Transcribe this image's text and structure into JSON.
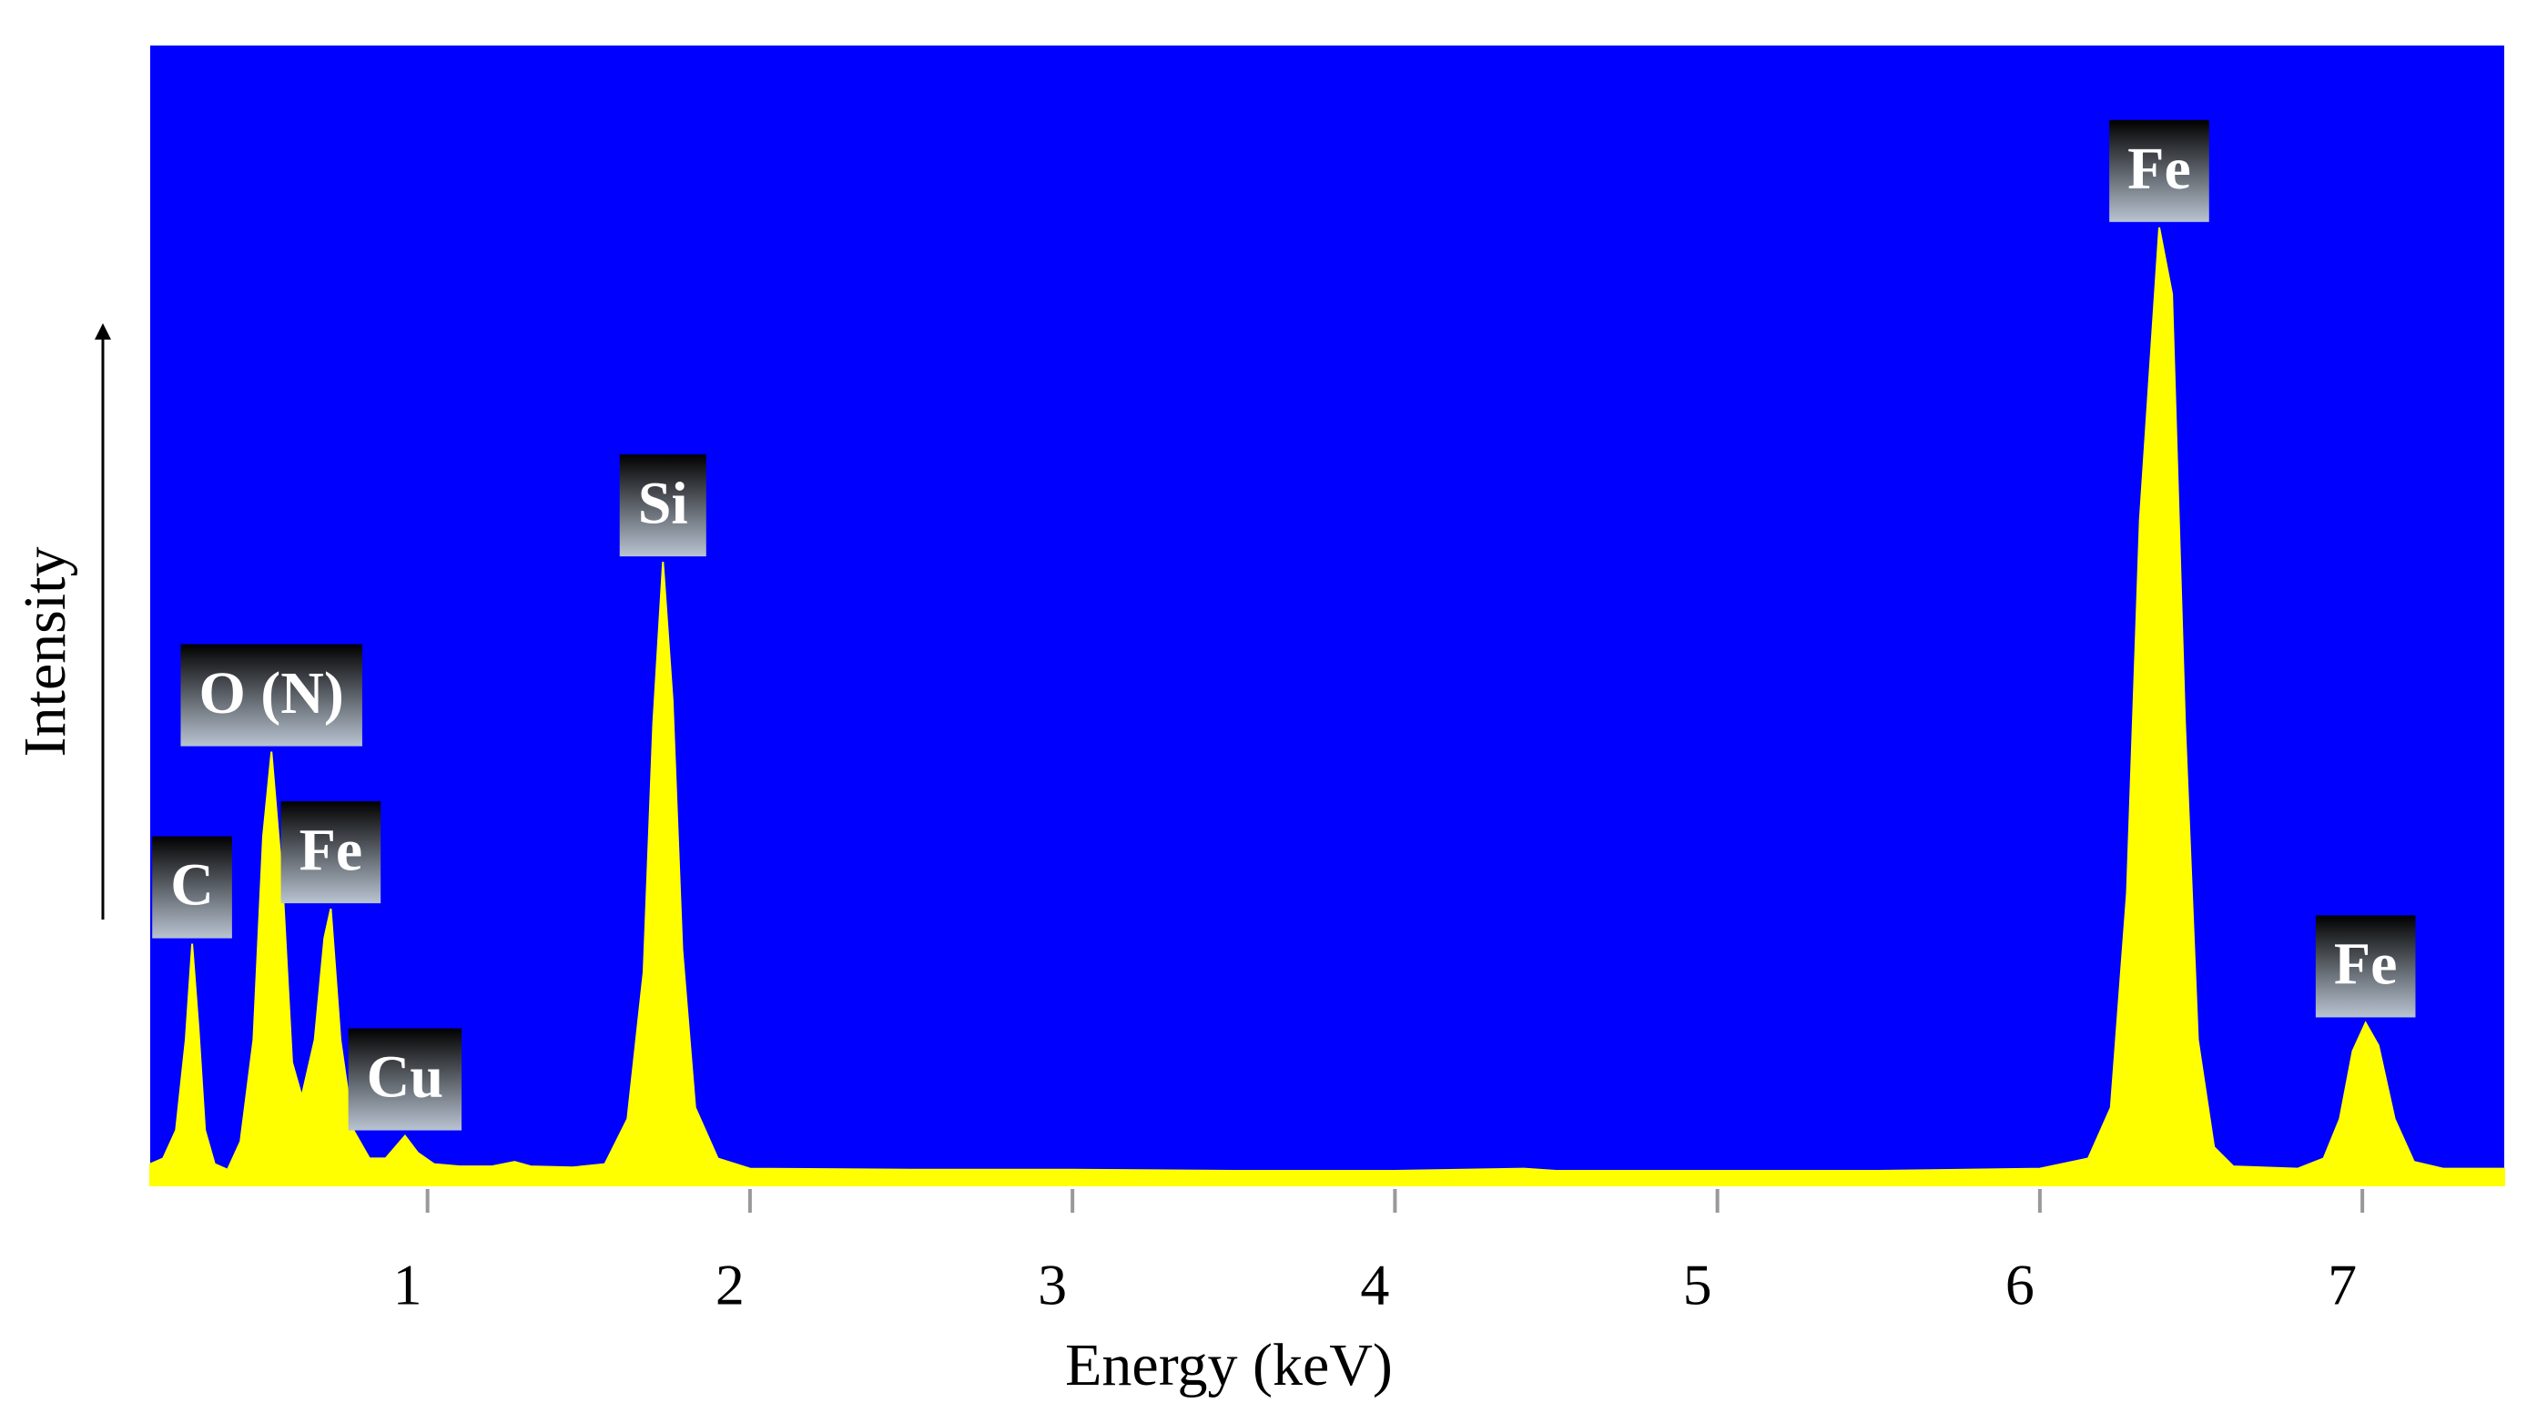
{
  "chart_data": {
    "type": "area",
    "xlabel": "Energy (keV)",
    "ylabel": "Intensity",
    "x": [
      0.14,
      0.18,
      0.22,
      0.25,
      0.27,
      0.29,
      0.31,
      0.34,
      0.38,
      0.42,
      0.46,
      0.49,
      0.516,
      0.55,
      0.58,
      0.61,
      0.65,
      0.68,
      0.7,
      0.73,
      0.77,
      0.82,
      0.87,
      0.93,
      0.97,
      1.02,
      1.1,
      1.2,
      1.27,
      1.32,
      1.45,
      1.55,
      1.62,
      1.67,
      1.7,
      1.73,
      1.76,
      1.79,
      1.83,
      1.9,
      2.0,
      2.5,
      3.0,
      3.5,
      4.0,
      4.4,
      4.5,
      5.0,
      5.5,
      6.0,
      6.15,
      6.22,
      6.27,
      6.31,
      6.37,
      6.41,
      6.45,
      6.49,
      6.54,
      6.6,
      6.8,
      6.88,
      6.93,
      6.97,
      7.01,
      7.05,
      7.1,
      7.16,
      7.25,
      7.44
    ],
    "values": [
      1,
      1.5,
      4,
      12,
      20.5,
      13,
      4,
      1,
      0.5,
      3,
      12,
      30,
      37.5,
      26,
      10,
      7,
      12,
      21,
      23.6,
      12,
      4,
      1.5,
      1.5,
      3.5,
      2,
      1,
      0.8,
      0.8,
      1.2,
      0.8,
      0.7,
      1,
      5,
      18,
      40,
      54.3,
      42,
      20,
      6,
      1.5,
      0.6,
      0.5,
      0.5,
      0.4,
      0.4,
      0.6,
      0.4,
      0.4,
      0.4,
      0.6,
      1.5,
      6,
      25,
      58,
      83.9,
      78,
      40,
      12,
      2.5,
      0.8,
      0.6,
      1.5,
      5,
      11,
      13.5,
      11.5,
      5,
      1.2,
      0.6,
      0.6
    ],
    "color": "#ffff00",
    "background": "#0000ff",
    "xlim": [
      0.14,
      7.44
    ],
    "ylim": [
      0,
      100
    ],
    "xticks": [
      1,
      2,
      3,
      4,
      5,
      6,
      7
    ],
    "annotations": [
      {
        "text": "C",
        "x": 0.27,
        "y": 20.5
      },
      {
        "text": "O (N)",
        "x": 0.516,
        "y": 37.5
      },
      {
        "text": "Fe",
        "x": 0.7,
        "y": 23.6
      },
      {
        "text": "Cu",
        "x": 0.93,
        "y": 3.5
      },
      {
        "text": "Si",
        "x": 1.73,
        "y": 54.3
      },
      {
        "text": "Fe",
        "x": 6.37,
        "y": 83.9
      },
      {
        "text": "Fe",
        "x": 7.01,
        "y": 13.5
      }
    ]
  }
}
